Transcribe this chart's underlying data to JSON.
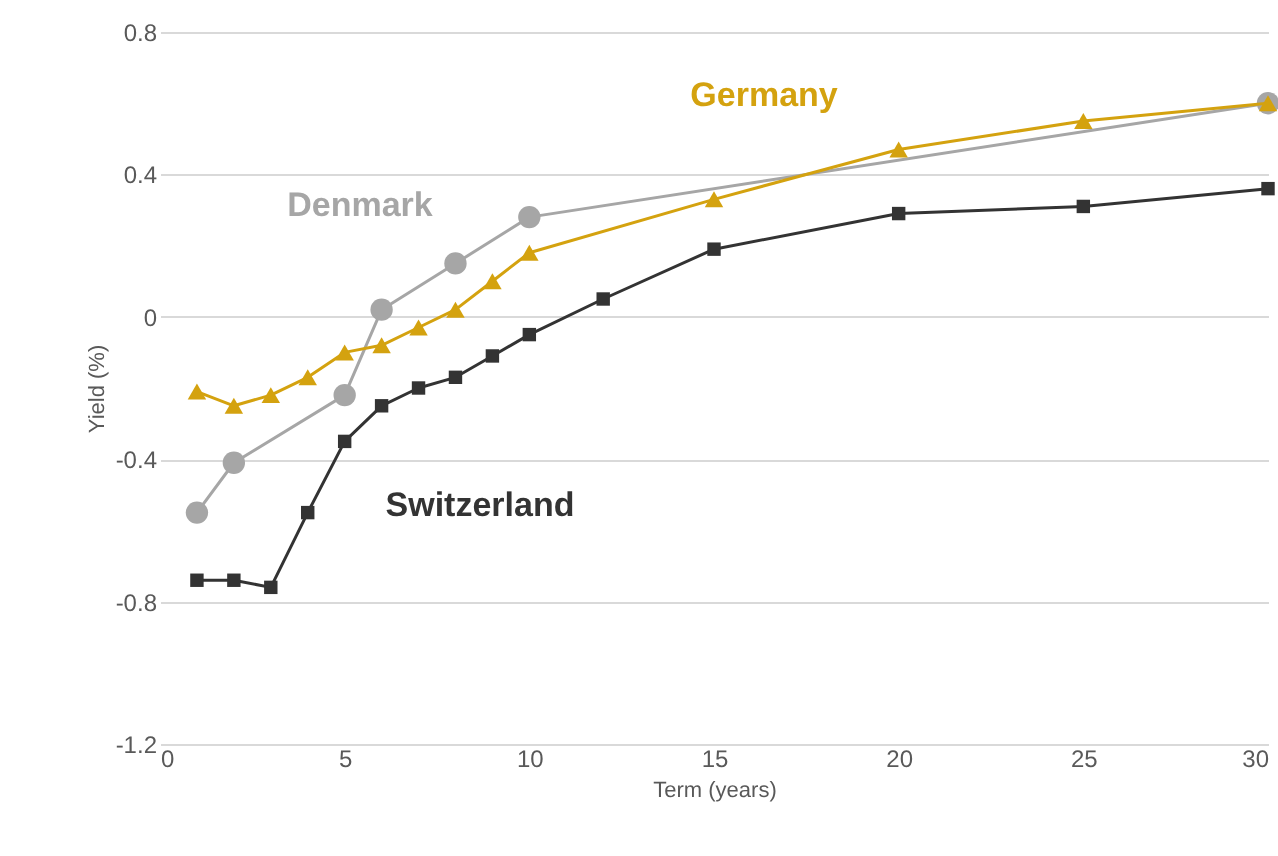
{
  "chart_data": {
    "type": "line",
    "xlabel": "Term (years)",
    "ylabel": "Yield (%)",
    "xlim": [
      0,
      30
    ],
    "xticks": [
      0,
      5,
      10,
      15,
      20,
      25,
      30
    ],
    "ylim": [
      -1.2,
      0.8
    ],
    "yticks": [
      -1.2,
      -0.8,
      -0.4,
      0,
      0.4,
      0.8
    ],
    "grid": "y",
    "line_style": "solid",
    "series": [
      {
        "name": "Denmark",
        "color": "#a6a6a6",
        "marker": "circle",
        "x": [
          1,
          2,
          5,
          6,
          8,
          10,
          30
        ],
        "values": [
          -0.55,
          -0.41,
          -0.22,
          0.02,
          0.15,
          0.28,
          0.6
        ]
      },
      {
        "name": "Germany",
        "color": "#d4a20f",
        "marker": "triangle",
        "x": [
          1,
          2,
          3,
          4,
          5,
          6,
          7,
          8,
          9,
          10,
          15,
          20,
          25,
          30
        ],
        "values": [
          -0.21,
          -0.25,
          -0.22,
          -0.17,
          -0.1,
          -0.08,
          -0.03,
          0.02,
          0.1,
          0.18,
          0.33,
          0.47,
          0.55,
          0.6
        ]
      },
      {
        "name": "Switzerland",
        "color": "#333333",
        "marker": "square",
        "x": [
          1,
          2,
          3,
          4,
          5,
          6,
          7,
          8,
          9,
          10,
          12,
          15,
          20,
          25,
          30
        ],
        "values": [
          -0.74,
          -0.74,
          -0.76,
          -0.55,
          -0.35,
          -0.25,
          -0.2,
          -0.17,
          -0.11,
          -0.05,
          0.05,
          0.19,
          0.29,
          0.31,
          0.36
        ]
      }
    ]
  }
}
